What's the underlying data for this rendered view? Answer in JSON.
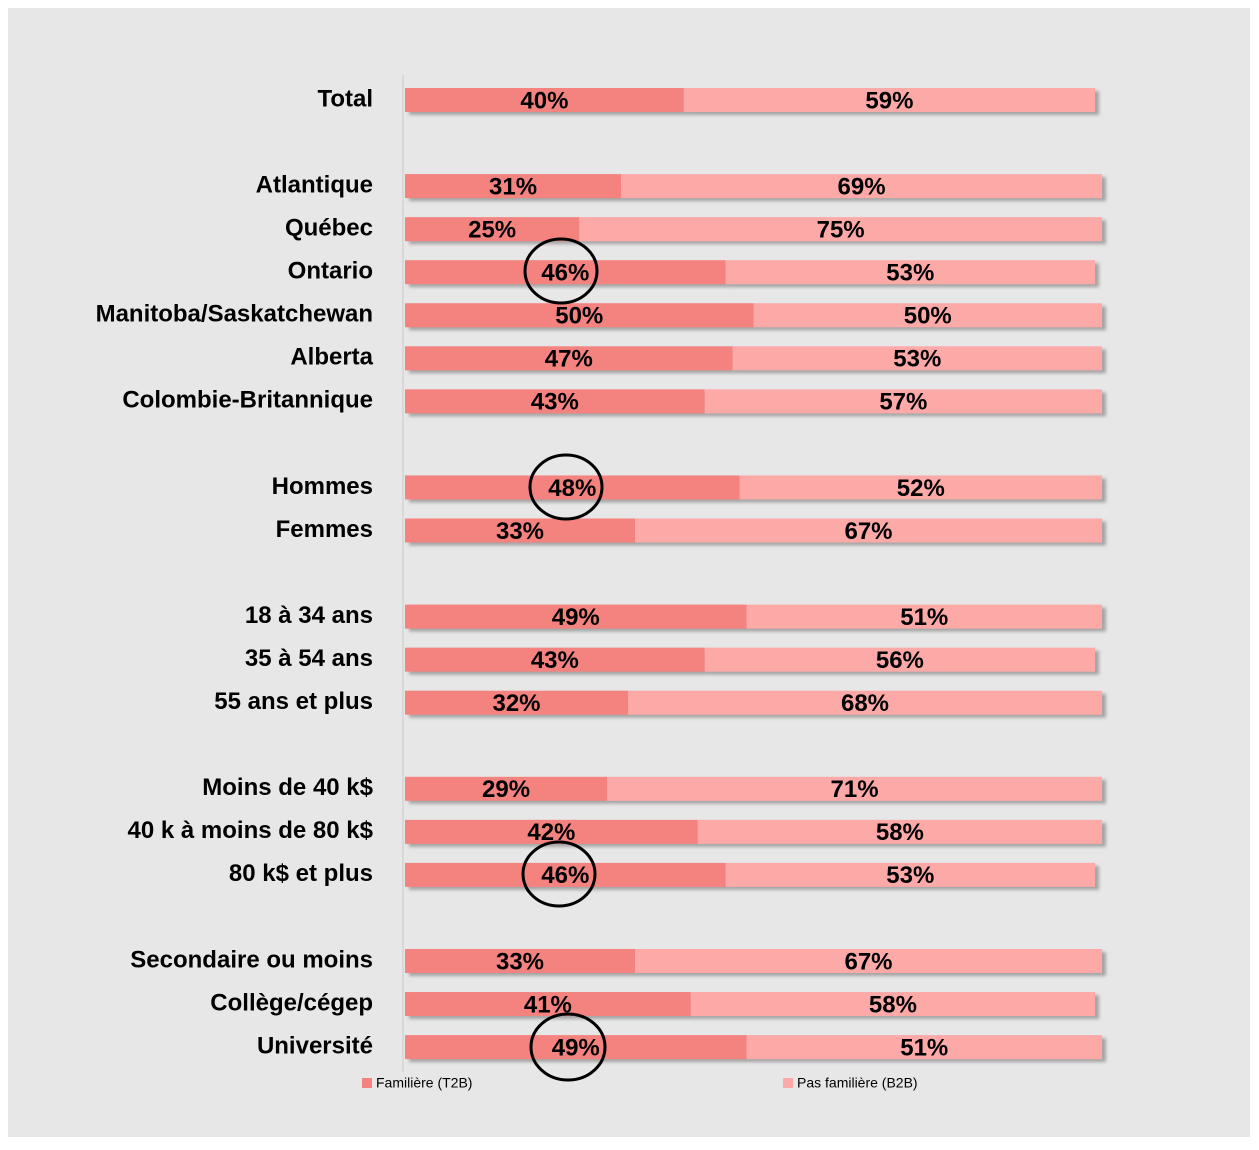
{
  "chart_data": {
    "type": "stacked-bar-horizontal",
    "categories": [
      "Total",
      null,
      "Atlantique",
      "Québec",
      "Ontario",
      "Manitoba/Saskatchewan",
      "Alberta",
      "Colombie-Britannique",
      null,
      "Hommes",
      "Femmes",
      null,
      "18 à 34 ans",
      "35 à 54 ans",
      "55 ans et plus",
      null,
      "Moins de 40 k$",
      "40 k à moins de 80 k$",
      "80 k$ et plus",
      null,
      "Secondaire ou moins",
      "Collège/cégep",
      "Université"
    ],
    "series": [
      {
        "name": "Familière (T2B)",
        "color": "#f4827f",
        "values": [
          40,
          null,
          31,
          25,
          46,
          50,
          47,
          43,
          null,
          48,
          33,
          null,
          49,
          43,
          32,
          null,
          29,
          42,
          46,
          null,
          33,
          41,
          49
        ],
        "value_labels": [
          "40%",
          null,
          "31%",
          "25%",
          "46%",
          "50%",
          "47%",
          "43%",
          null,
          "48%",
          "33%",
          null,
          "49%",
          "43%",
          "32%",
          null,
          "29%",
          "42%",
          "46%",
          null,
          "33%",
          "41%",
          "49%"
        ]
      },
      {
        "name": "Pas familière (B2B)",
        "color": "#fca9a8",
        "values": [
          59,
          null,
          69,
          75,
          53,
          50,
          53,
          57,
          null,
          52,
          67,
          null,
          51,
          56,
          68,
          null,
          71,
          58,
          53,
          null,
          67,
          58,
          51
        ],
        "value_labels": [
          "59%",
          null,
          "69%",
          "75%",
          "53%",
          "50%",
          "53%",
          "57%",
          null,
          "52%",
          "67%",
          null,
          "51%",
          "56%",
          "68%",
          null,
          "71%",
          "58%",
          "53%",
          null,
          "67%",
          "58%",
          "51%"
        ]
      }
    ],
    "xlim": [
      0,
      100
    ],
    "legend": "bottom"
  }
}
